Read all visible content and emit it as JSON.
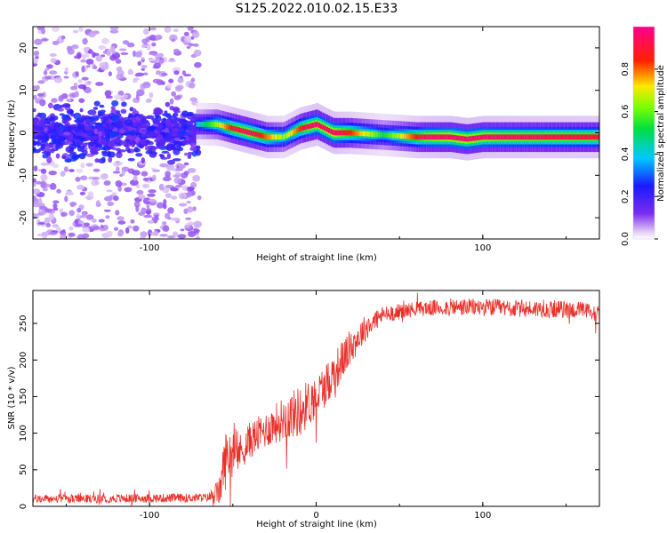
{
  "title": "S125.2022.010.02.15.E33",
  "colors": {
    "snr_line": "#e8302a",
    "frame": "#000000"
  },
  "chart_data": [
    {
      "type": "heatmap",
      "xlabel": "Height of straight line (km)",
      "ylabel": "Frequency (Hz)",
      "xlim": [
        -170,
        170
      ],
      "ylim": [
        -25,
        25
      ],
      "x_ticks": [
        -100,
        100
      ],
      "y_ticks": [
        20,
        10,
        0,
        -10,
        -20
      ],
      "grid": false,
      "colorbar": {
        "label": "Normalized spectral amplitude",
        "range": [
          0,
          1
        ],
        "ticks": [
          0.0,
          0.2,
          0.4,
          0.6,
          0.8
        ],
        "colormap": "rainbow (purple-blue-cyan-green-yellow-red-magenta)"
      },
      "ridge_center_hz": [
        [
          -70,
          2
        ],
        [
          -60,
          2
        ],
        [
          -50,
          1
        ],
        [
          -40,
          0
        ],
        [
          -30,
          -1
        ],
        [
          -20,
          -1
        ],
        [
          -10,
          1
        ],
        [
          0,
          2
        ],
        [
          10,
          0
        ],
        [
          20,
          0
        ],
        [
          40,
          -0.5
        ],
        [
          60,
          -1
        ],
        [
          80,
          -1
        ],
        [
          90,
          -1.5
        ],
        [
          100,
          -1
        ],
        [
          120,
          -1
        ],
        [
          170,
          -1
        ]
      ],
      "ridge_peak_amplitude": [
        [
          -70,
          0.4
        ],
        [
          -50,
          0.85
        ],
        [
          -40,
          0.9
        ],
        [
          -20,
          0.6
        ],
        [
          -5,
          0.9
        ],
        [
          10,
          0.95
        ],
        [
          40,
          0.5
        ],
        [
          65,
          0.9
        ],
        [
          80,
          0.95
        ],
        [
          90,
          0.95
        ],
        [
          110,
          0.9
        ],
        [
          170,
          0.85
        ]
      ],
      "noise_region_km": [
        -170,
        -70
      ],
      "noise_amplitude": 0.2
    },
    {
      "type": "line",
      "xlabel": "Height of straight line (km)",
      "ylabel": "SNR (10 * v/v)",
      "xlim": [
        -170,
        170
      ],
      "ylim": [
        0,
        295
      ],
      "x_ticks": [
        -100,
        0,
        100
      ],
      "y_ticks": [
        0,
        50,
        100,
        150,
        200,
        250
      ],
      "grid": false,
      "series": [
        {
          "envelope_x": [
            -170,
            -100,
            -65,
            -58,
            -55,
            -52,
            -50,
            -45,
            -40,
            -30,
            -20,
            -10,
            0,
            10,
            20,
            30,
            40,
            60,
            80,
            100,
            120,
            140,
            160,
            170
          ],
          "envelope_mean": [
            10,
            11,
            12,
            20,
            60,
            75,
            70,
            75,
            90,
            105,
            120,
            130,
            150,
            180,
            215,
            245,
            262,
            270,
            272,
            272,
            270,
            270,
            268,
            262
          ],
          "envelope_spread": [
            6,
            6,
            6,
            20,
            40,
            40,
            30,
            25,
            25,
            25,
            30,
            35,
            30,
            30,
            25,
            18,
            12,
            10,
            12,
            12,
            12,
            12,
            12,
            12
          ]
        }
      ]
    }
  ]
}
